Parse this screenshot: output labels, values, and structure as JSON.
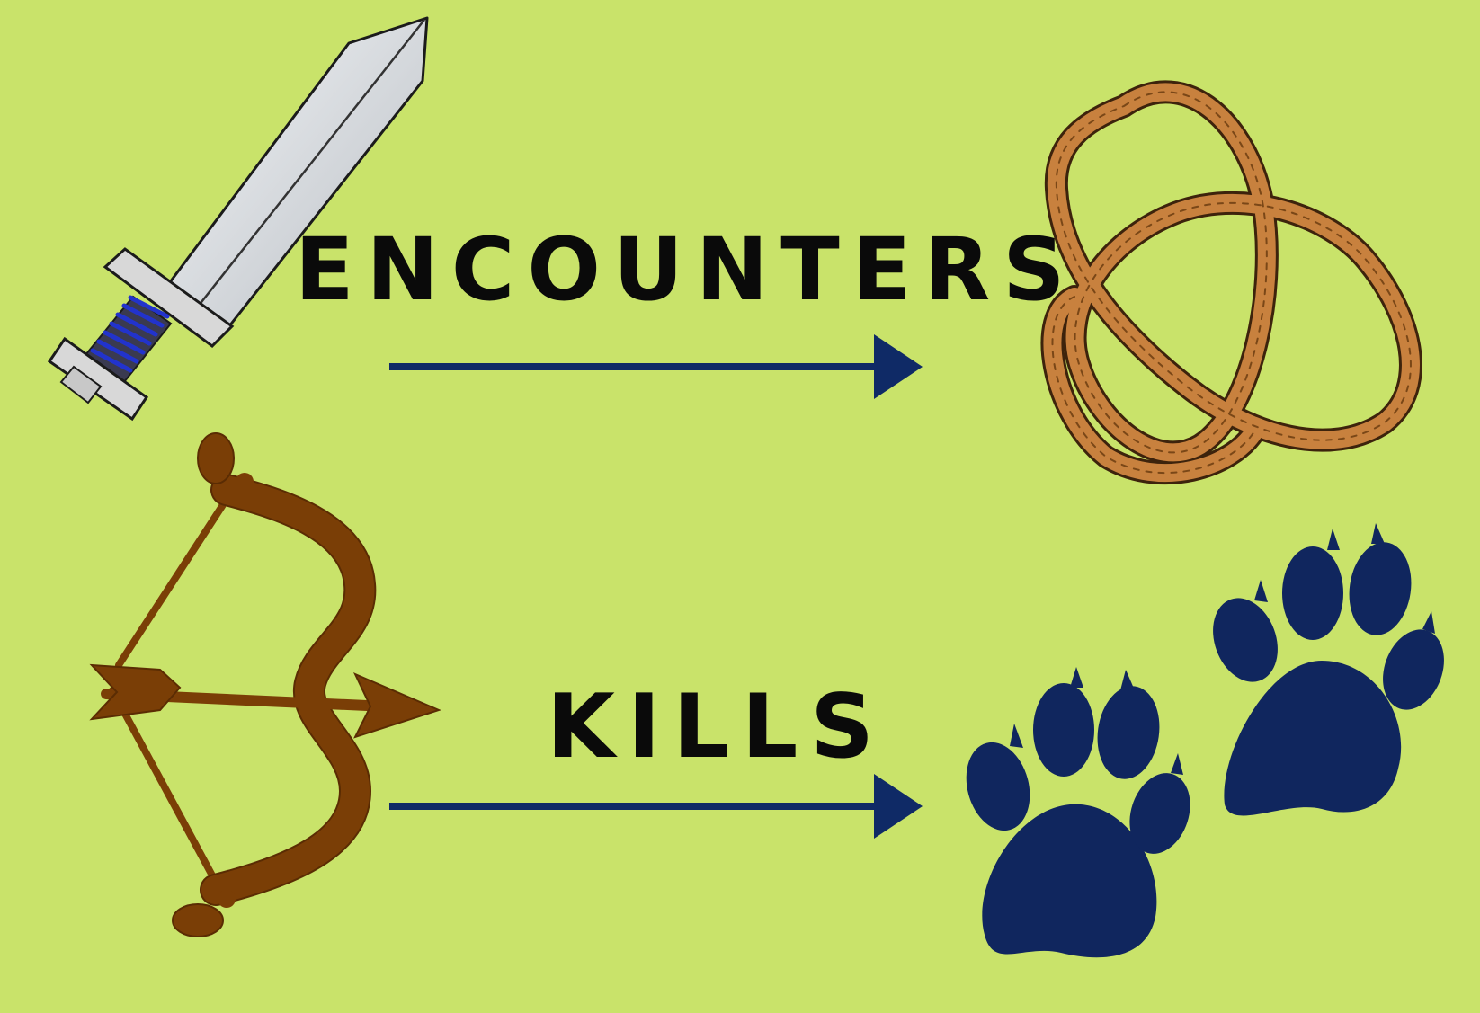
{
  "rows": [
    {
      "label": "ENCOUNTERS",
      "source_icon": "sword-icon",
      "target_icon": "rope-knot-icon"
    },
    {
      "label": "KILLS",
      "source_icon": "bow-and-arrow-icon",
      "target_icon": "paw-prints-icon"
    }
  ],
  "colors": {
    "background": "#c9e36a",
    "arrow": "#0f2a66",
    "text": "#0a0a0a",
    "bow": "#7a3e06",
    "rope": "#c8813e",
    "paw": "#10265e",
    "blade": "#d5d8dc",
    "grip": "#1a2ea8"
  }
}
